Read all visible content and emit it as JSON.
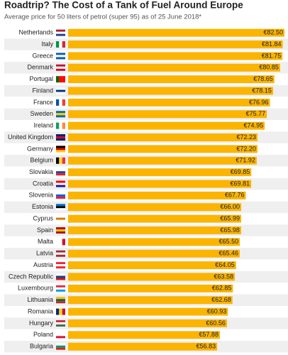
{
  "chart_data": {
    "type": "bar",
    "orientation": "horizontal",
    "title": "Roadtrip? The Cost of a Tank of Fuel Around Europe",
    "subtitle": "Average price for 50 liters of petrol (super 95) as of 25 June 2018*",
    "color": "#fbb400",
    "categories": [
      "Netherlands",
      "Italy",
      "Greece",
      "Denmark",
      "Portugal",
      "Finland",
      "France",
      "Sweden",
      "Ireland",
      "United Kingdom",
      "Germany",
      "Belgium",
      "Slovakia",
      "Croatia",
      "Slovenia",
      "Estonia",
      "Cyprus",
      "Spain",
      "Malta",
      "Latvia",
      "Austria",
      "Czech Republic",
      "Luxembourg",
      "Lithuania",
      "Romania",
      "Hungary",
      "Poland",
      "Bulgaria"
    ],
    "values": [
      82.5,
      81.84,
      81.75,
      80.85,
      78.65,
      78.15,
      76.96,
      75.77,
      74.95,
      72.23,
      72.2,
      71.92,
      69.85,
      69.81,
      67.76,
      66.0,
      65.99,
      65.98,
      65.5,
      65.46,
      64.05,
      63.58,
      62.85,
      62.68,
      60.93,
      60.56,
      57.88,
      56.83
    ],
    "value_labels": [
      "€82.50",
      "€81.84",
      "€81.75",
      "€80.85",
      "€78.65",
      "€78.15",
      "€76.96",
      "€75.77",
      "€74.95",
      "€72.23",
      "€72.20",
      "€71.92",
      "€69.85",
      "€69.81",
      "€67.76",
      "€66.00",
      "€65.99",
      "€65.98",
      "€65.50",
      "€65.46",
      "€64.05",
      "€63.58",
      "€62.85",
      "€62.68",
      "€60.93",
      "€60.56",
      "€57.88",
      "€56.83"
    ]
  }
}
